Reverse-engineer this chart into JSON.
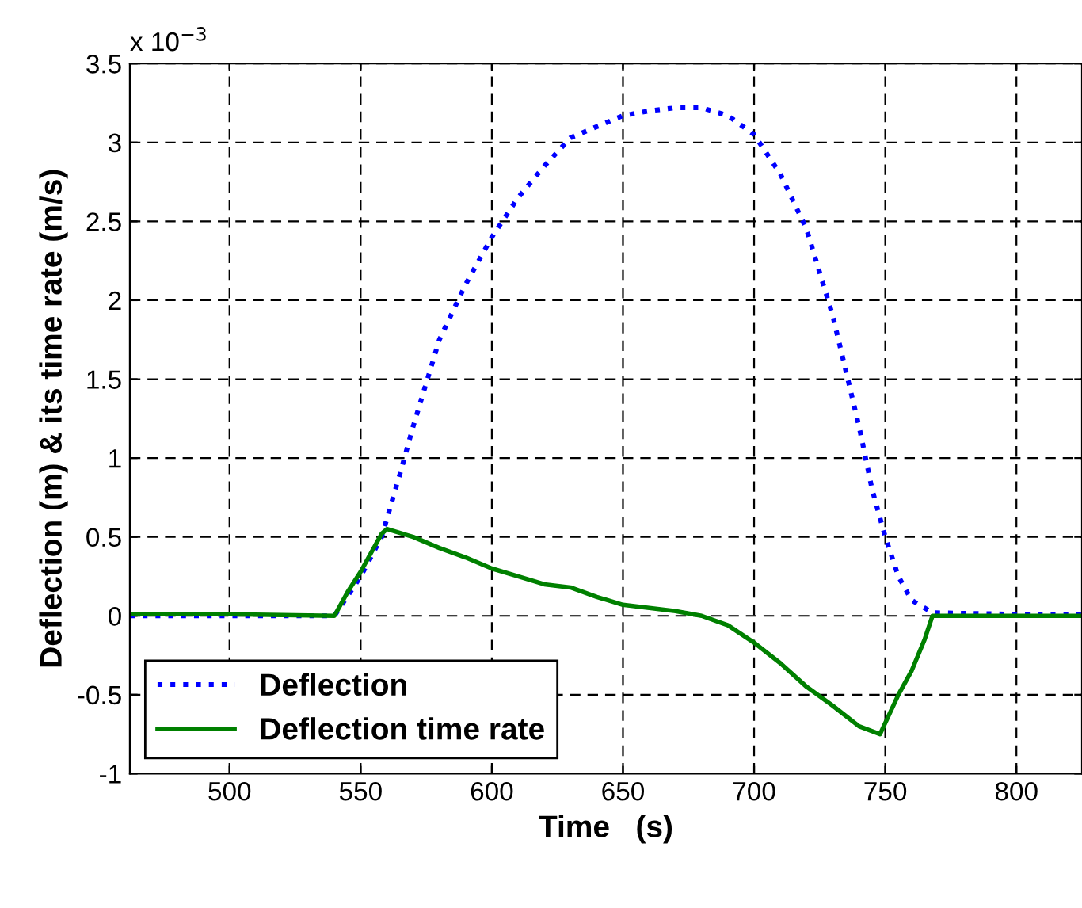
{
  "chart_data": {
    "type": "line",
    "xlabel": "Time   (s)",
    "ylabel": "Deflection (m) & its time rate (m/s)",
    "annotations": [
      "x 10$^{−3}$"
    ],
    "xlim": [
      462,
      825
    ],
    "xticks": [
      500,
      550,
      600,
      650,
      700,
      750,
      800
    ],
    "ylim": [
      -1,
      3.5
    ],
    "yticks": [
      -1,
      -0.5,
      0,
      0.5,
      1,
      1.5,
      2,
      2.5,
      3,
      3.5
    ],
    "grid": true,
    "legend": "bottom left",
    "series": [
      {
        "name": "Deflection",
        "color": "#0000ff",
        "line_style": "dotted",
        "x": [
          462,
          500,
          540,
          550,
          558,
          565,
          570,
          580,
          590,
          600,
          610,
          620,
          630,
          640,
          650,
          660,
          670,
          680,
          690,
          700,
          710,
          720,
          730,
          735,
          740,
          745,
          750,
          755,
          760,
          768,
          800,
          825
        ],
        "values": [
          0.0,
          0.0,
          0.0,
          0.25,
          0.5,
          0.9,
          1.2,
          1.75,
          2.1,
          2.4,
          2.65,
          2.85,
          3.03,
          3.1,
          3.17,
          3.2,
          3.22,
          3.22,
          3.17,
          3.05,
          2.8,
          2.45,
          1.9,
          1.55,
          1.2,
          0.8,
          0.5,
          0.25,
          0.1,
          0.02,
          0.01,
          0.01
        ]
      },
      {
        "name": "Deflection time rate",
        "color": "#008000",
        "line_style": "solid",
        "x": [
          462,
          500,
          540,
          545,
          550,
          558,
          560,
          570,
          580,
          590,
          600,
          610,
          620,
          630,
          640,
          650,
          660,
          670,
          680,
          690,
          700,
          710,
          720,
          730,
          740,
          748,
          755,
          760,
          765,
          768,
          800,
          825
        ],
        "values": [
          0.01,
          0.01,
          0.0,
          0.15,
          0.28,
          0.52,
          0.55,
          0.5,
          0.43,
          0.37,
          0.3,
          0.25,
          0.2,
          0.18,
          0.12,
          0.07,
          0.05,
          0.03,
          0.0,
          -0.06,
          -0.17,
          -0.3,
          -0.45,
          -0.57,
          -0.7,
          -0.75,
          -0.5,
          -0.35,
          -0.15,
          0.0,
          0.0,
          0.0
        ]
      }
    ]
  }
}
